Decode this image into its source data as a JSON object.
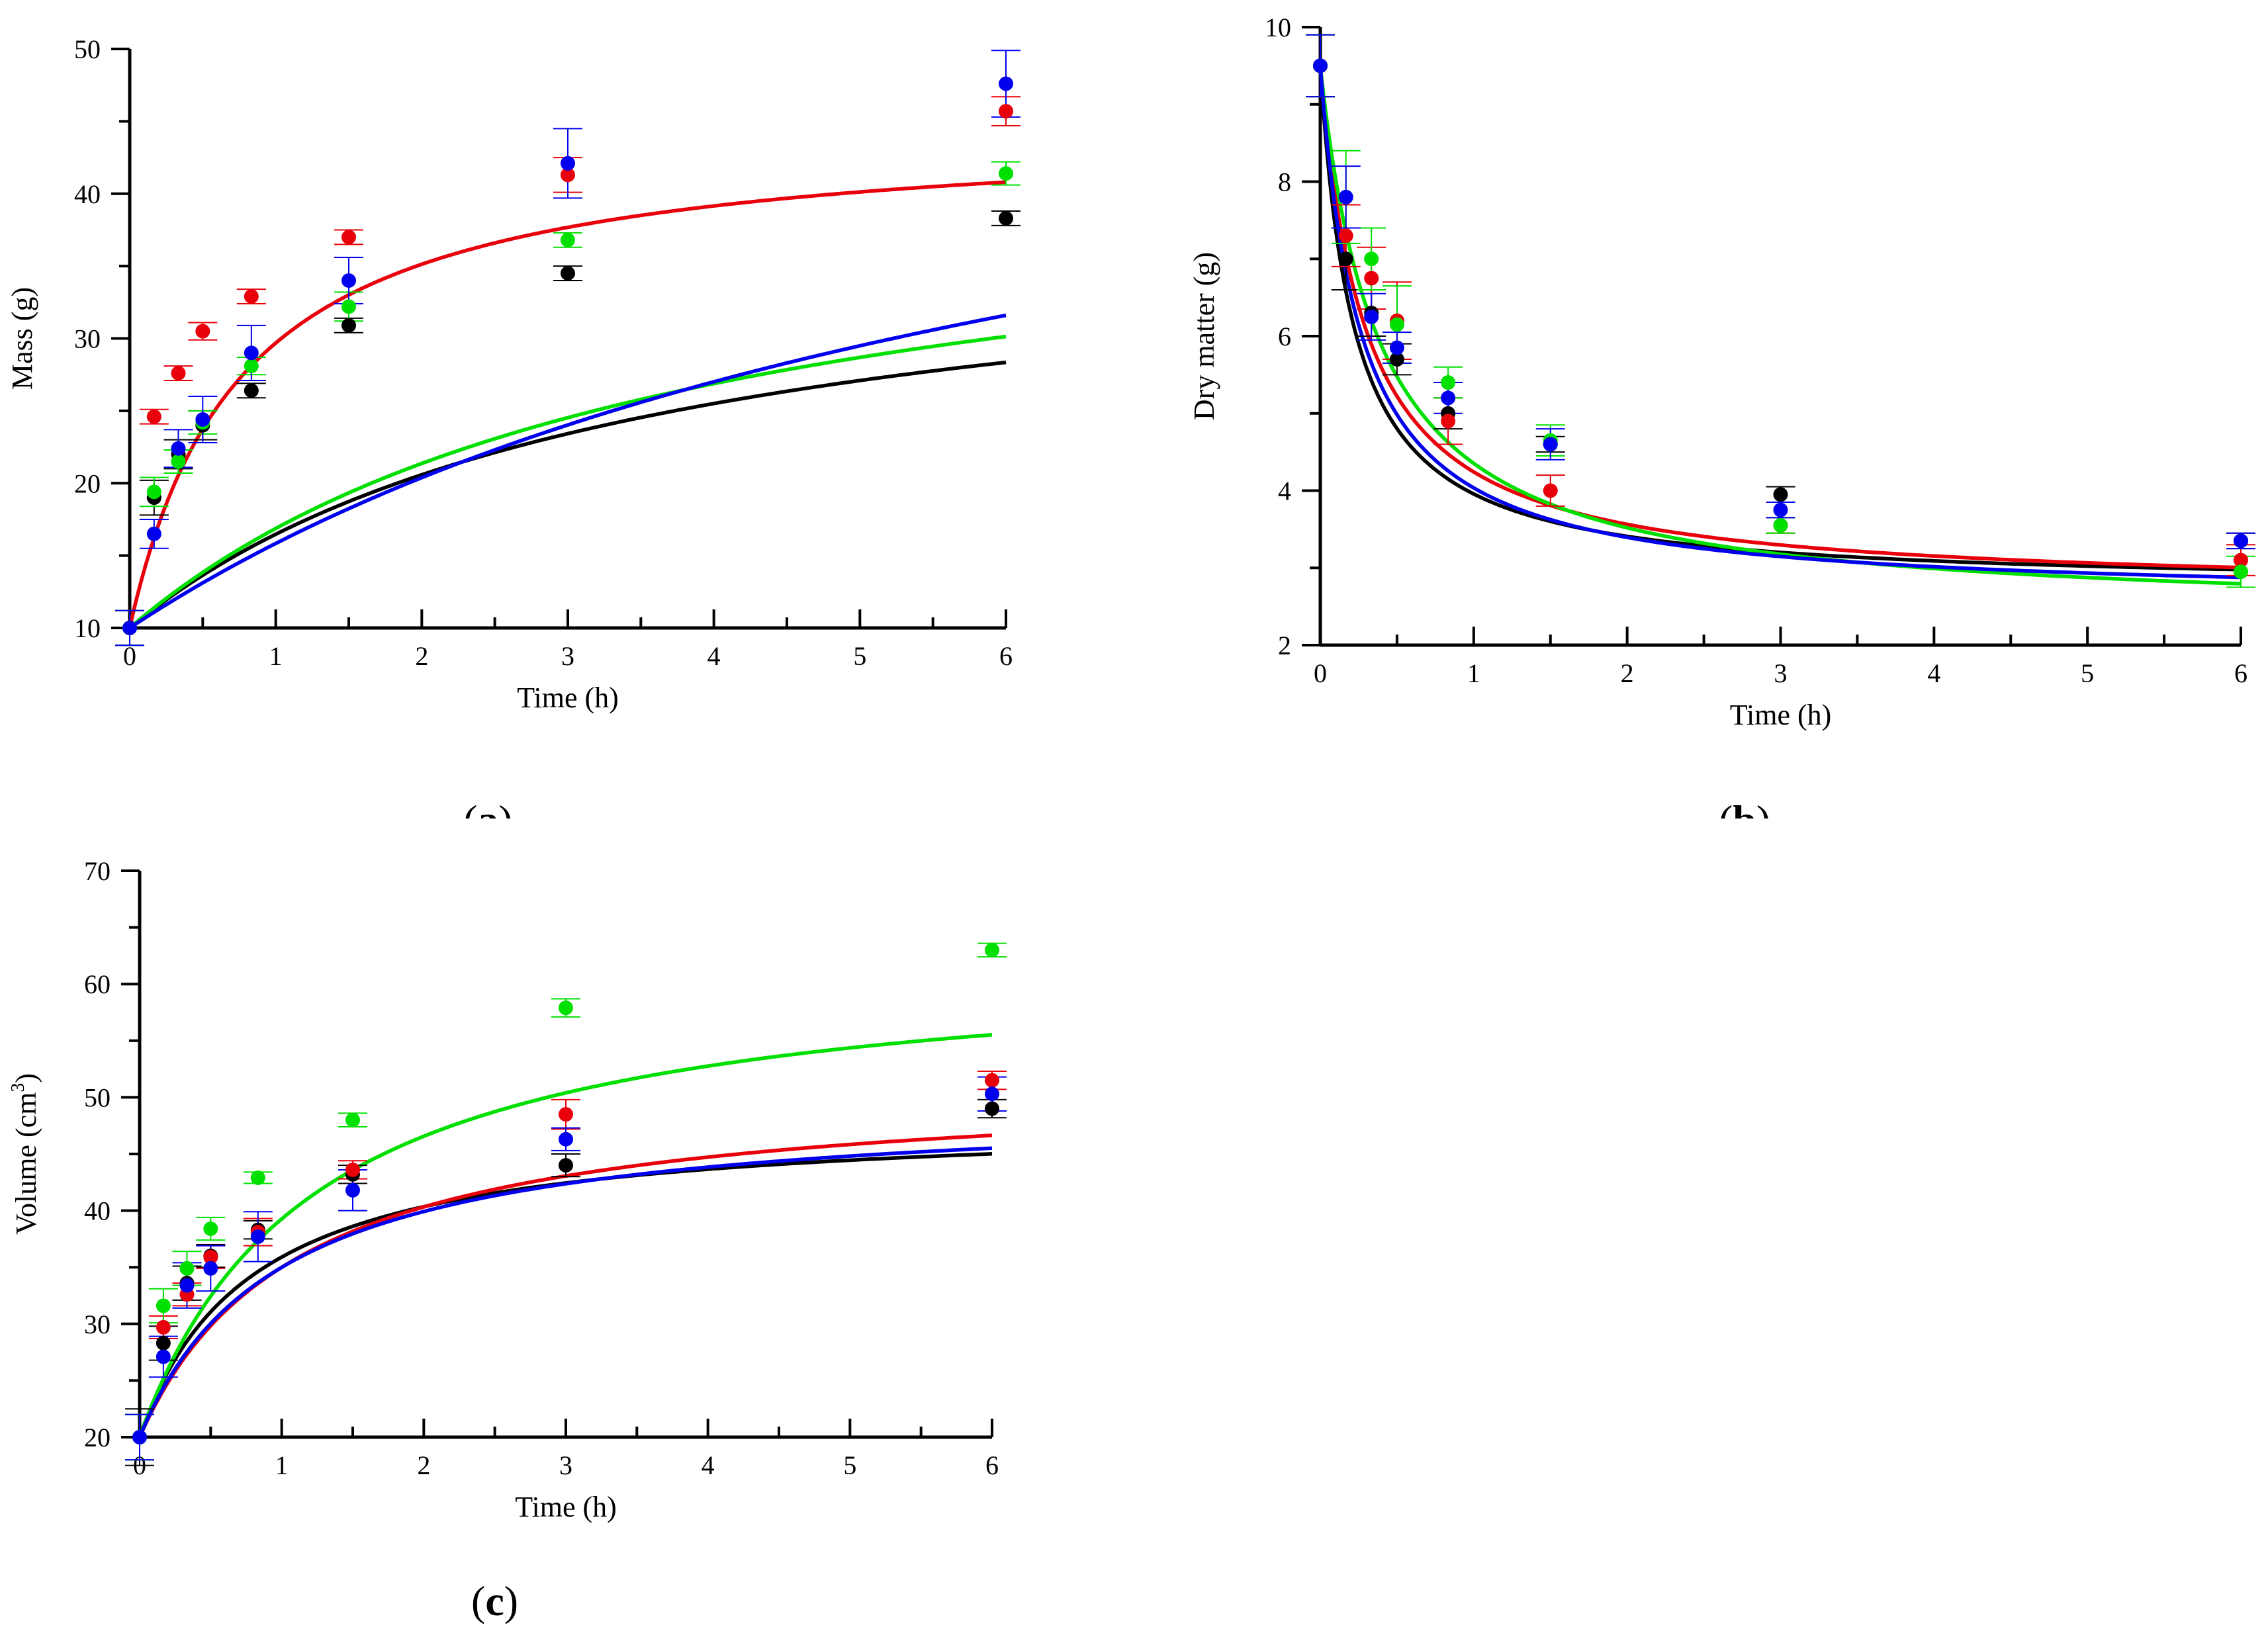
{
  "colors": {
    "black": "#000000",
    "red": "#e8000b",
    "green": "#00e000",
    "blue": "#0000ee"
  },
  "chart_data": [
    {
      "type": "scatter",
      "panel": "a",
      "panel_label": "a",
      "title": "",
      "xlabel": "Time (h)",
      "ylabel": "Mass (g)",
      "xlim": [
        0,
        6
      ],
      "ylim": [
        10,
        50
      ],
      "xticks": [
        0,
        1,
        2,
        3,
        4,
        5,
        6
      ],
      "yticks": [
        10,
        20,
        30,
        40,
        50
      ],
      "x": [
        0,
        0.167,
        0.333,
        0.5,
        0.833,
        1.5,
        3,
        6
      ],
      "series": [
        {
          "name": "black",
          "color": "#000000",
          "values": [
            10,
            19.0,
            22.0,
            24.0,
            26.4,
            30.9,
            34.5,
            38.3
          ],
          "errors": [
            1.2,
            1.2,
            1.0,
            1.0,
            0.5,
            0.5,
            0.5,
            0.5
          ],
          "fit": {
            "model": "peleg",
            "y0": 10,
            "k1": 0.12,
            "k2": 0.0345
          }
        },
        {
          "name": "red",
          "color": "#e8000b",
          "values": [
            10,
            24.6,
            27.6,
            30.5,
            32.9,
            37.0,
            41.3,
            45.7
          ],
          "errors": [
            1.2,
            0.5,
            0.5,
            0.6,
            0.5,
            0.5,
            1.2,
            1.0
          ],
          "fit": {
            "model": "peleg",
            "y0": 10,
            "k1": 0.022,
            "k2": 0.0288
          }
        },
        {
          "name": "green",
          "color": "#00e000",
          "values": [
            10,
            19.4,
            21.5,
            24.2,
            28.1,
            32.2,
            36.8,
            41.4
          ],
          "errors": [
            1.2,
            1.0,
            0.8,
            0.8,
            0.6,
            1.0,
            0.5,
            0.8
          ],
          "fit": {
            "model": "peleg",
            "y0": 10,
            "k1": 0.115,
            "k2": 0.0305
          }
        },
        {
          "name": "blue",
          "color": "#0000ee",
          "values": [
            10,
            16.5,
            22.4,
            24.4,
            29.0,
            34.0,
            42.1,
            47.6
          ],
          "errors": [
            1.2,
            1.0,
            1.3,
            1.6,
            1.9,
            1.6,
            2.4,
            2.3
          ],
          "fit": {
            "model": "peleg",
            "y0": 10,
            "k1": 0.15,
            "k2": 0.0213
          }
        }
      ]
    },
    {
      "type": "scatter",
      "panel": "b",
      "panel_label": "b",
      "title": "",
      "xlabel": "Time (h)",
      "ylabel": "Dry matter (g)",
      "xlim": [
        0,
        6
      ],
      "ylim": [
        2,
        10
      ],
      "xticks": [
        0,
        1,
        2,
        3,
        4,
        5,
        6
      ],
      "yticks": [
        2,
        4,
        6,
        8,
        10
      ],
      "x": [
        0,
        0.167,
        0.333,
        0.5,
        0.833,
        1.5,
        3,
        6
      ],
      "series": [
        {
          "name": "black",
          "color": "#000000",
          "values": [
            9.5,
            7.0,
            6.3,
            5.7,
            5.0,
            4.6,
            3.95,
            3.35
          ],
          "errors": [
            0.4,
            0.4,
            0.3,
            0.2,
            0.2,
            0.1,
            0.1,
            0.1
          ],
          "fit": {
            "model": "peleg",
            "y0": 9.5,
            "k1": -0.0325,
            "k2": -0.1479
          }
        },
        {
          "name": "red",
          "color": "#e8000b",
          "values": [
            9.5,
            7.3,
            6.75,
            6.2,
            4.9,
            4.0,
            3.55,
            3.1
          ],
          "errors": [
            0.4,
            0.4,
            0.4,
            0.5,
            0.3,
            0.2,
            0.1,
            0.2
          ],
          "fit": {
            "model": "peleg",
            "y0": 9.5,
            "k1": -0.0435,
            "k2": -0.1467
          }
        },
        {
          "name": "green",
          "color": "#00e000",
          "values": [
            9.5,
            7.8,
            7.0,
            6.15,
            5.4,
            4.65,
            3.55,
            2.95
          ],
          "errors": [
            0.4,
            0.6,
            0.4,
            0.5,
            0.2,
            0.2,
            0.1,
            0.2
          ],
          "fit": {
            "model": "peleg",
            "y0": 9.5,
            "k1": -0.0542,
            "k2": -0.1401
          }
        },
        {
          "name": "blue",
          "color": "#0000ee",
          "values": [
            9.5,
            7.8,
            6.25,
            5.85,
            5.2,
            4.6,
            3.75,
            3.35
          ],
          "errors": [
            0.4,
            0.4,
            0.3,
            0.2,
            0.2,
            0.2,
            0.1,
            0.1
          ],
          "fit": {
            "model": "peleg",
            "y0": 9.5,
            "k1": -0.0384,
            "k2": -0.1446
          }
        }
      ]
    },
    {
      "type": "scatter",
      "panel": "c",
      "panel_label": "c",
      "title": "",
      "xlabel": "Time (h)",
      "ylabel": "Volume (cm",
      "ylabel_sup": "3",
      "ylabel_tail": ")",
      "xlim": [
        0,
        6
      ],
      "ylim": [
        20,
        70
      ],
      "xticks": [
        0,
        1,
        2,
        3,
        4,
        5,
        6
      ],
      "yticks": [
        20,
        30,
        40,
        50,
        60,
        70
      ],
      "x": [
        0,
        0.167,
        0.333,
        0.5,
        0.833,
        1.5,
        3,
        6
      ],
      "series": [
        {
          "name": "black",
          "color": "#000000",
          "values": [
            20,
            28.3,
            33.6,
            36.0,
            38.3,
            43.2,
            44.0,
            49.0
          ],
          "errors": [
            2.5,
            1.5,
            1.5,
            1.0,
            0.8,
            0.8,
            1.0,
            0.8
          ],
          "fit": {
            "model": "peleg",
            "y0": 20,
            "k1": 0.0275,
            "k2": 0.0354
          }
        },
        {
          "name": "red",
          "color": "#e8000b",
          "values": [
            20,
            29.7,
            32.6,
            35.9,
            38.1,
            43.6,
            48.5,
            51.5
          ],
          "errors": [
            2.0,
            1.0,
            1.0,
            1.0,
            1.2,
            0.8,
            1.3,
            0.8
          ],
          "fit": {
            "model": "peleg",
            "y0": 20,
            "k1": 0.035,
            "k2": 0.0317
          }
        },
        {
          "name": "green",
          "color": "#00e000",
          "values": [
            20,
            31.6,
            34.9,
            38.4,
            42.9,
            48.0,
            57.9,
            63.0
          ],
          "errors": [
            2.0,
            1.5,
            1.5,
            1.0,
            0.5,
            0.6,
            0.8,
            0.6
          ],
          "fit": {
            "model": "peleg",
            "y0": 20,
            "k1": 0.0285,
            "k2": 0.0234
          }
        },
        {
          "name": "blue",
          "color": "#0000ee",
          "values": [
            20,
            27.1,
            33.4,
            34.9,
            37.7,
            41.8,
            46.3,
            50.3
          ],
          "errors": [
            2.0,
            1.8,
            2.0,
            2.0,
            2.2,
            1.8,
            1.0,
            1.5
          ],
          "fit": {
            "model": "peleg",
            "y0": 20,
            "k1": 0.033,
            "k2": 0.0337
          }
        }
      ]
    }
  ]
}
